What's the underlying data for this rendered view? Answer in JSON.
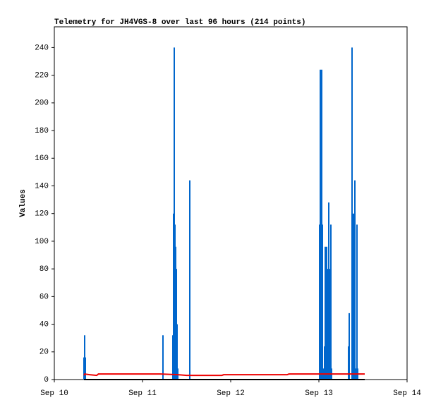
{
  "chart_data": {
    "type": "line",
    "title": "Telemetry for JH4VGS-8 over last 96 hours (214 points)",
    "y_label": "Values",
    "xlim": [
      0,
      4
    ],
    "xticks": [
      {
        "value": 0,
        "label": "Sep 10"
      },
      {
        "value": 1,
        "label": "Sep 11"
      },
      {
        "value": 2,
        "label": "Sep 12"
      },
      {
        "value": 3,
        "label": "Sep 13"
      },
      {
        "value": 4,
        "label": "Sep 14"
      }
    ],
    "ylim": [
      0,
      255
    ],
    "yticks": [
      0,
      20,
      40,
      60,
      80,
      100,
      120,
      140,
      160,
      180,
      200,
      220,
      240
    ],
    "grid": false,
    "series": [
      {
        "color": "#0066cc",
        "style": "impulses",
        "x": [
          0.336,
          0.344,
          0.352,
          1.232,
          1.344,
          1.352,
          1.36,
          1.368,
          1.376,
          1.384,
          1.392,
          1.4,
          1.536,
          3.008,
          3.016,
          3.024,
          3.032,
          3.04,
          3.048,
          3.064,
          3.072,
          3.08,
          3.088,
          3.096,
          3.112,
          3.12,
          3.136,
          3.144,
          3.336,
          3.344,
          3.376,
          3.392,
          3.4,
          3.408,
          3.416,
          3.432,
          3.44
        ],
        "values": [
          16,
          32,
          16,
          32,
          32,
          120,
          240,
          112,
          96,
          80,
          40,
          8,
          144,
          112,
          224,
          112,
          224,
          112,
          8,
          24,
          96,
          80,
          96,
          80,
          128,
          80,
          112,
          8,
          24,
          48,
          240,
          120,
          72,
          144,
          8,
          112,
          8
        ]
      },
      {
        "color": "#ee0000",
        "style": "line",
        "x": [
          0.336,
          0.344,
          0.4,
          0.48,
          0.5,
          1.2,
          1.4,
          1.5,
          1.9,
          1.92,
          2.64,
          2.66,
          3.52
        ],
        "values": [
          3,
          4,
          3.5,
          3,
          4,
          4,
          3.5,
          3,
          3,
          3.5,
          3.5,
          4,
          4
        ]
      },
      {
        "color": "#000000",
        "style": "line",
        "x": [
          0.336,
          3.52
        ],
        "values": [
          0,
          0
        ]
      }
    ]
  }
}
